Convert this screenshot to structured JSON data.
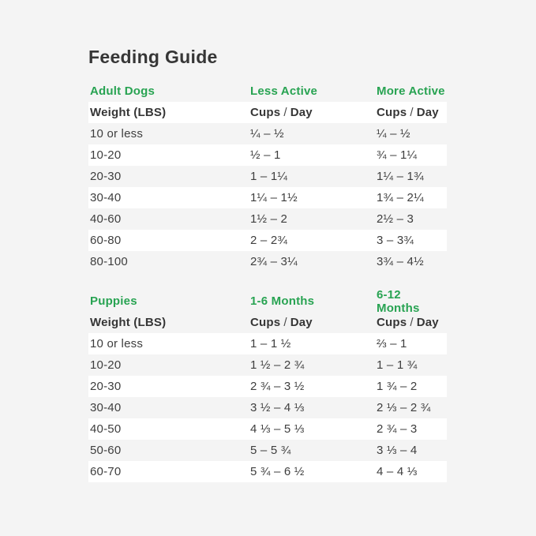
{
  "page": {
    "title": "Feeding Guide",
    "background_color": "#f4f4f4",
    "stripe_color": "#ffffff",
    "accent_green": "#28a352",
    "text_color": "#3e3e3e"
  },
  "chart_data": [
    {
      "type": "table",
      "title": "Feeding Guide",
      "group_labels": [
        "Adult Dogs",
        "Less Active",
        "More Active"
      ],
      "header": {
        "weight": "Weight (LBS)",
        "cups": "Cups",
        "slash": "/",
        "day": "Day"
      },
      "columns": [
        "Weight (LBS)",
        "Less Active Cups / Day",
        "More Active Cups / Day"
      ],
      "rows": [
        [
          "10 or less",
          "¼ – ½",
          "¼ – ½"
        ],
        [
          "10-20",
          "½ – 1",
          "¾ – 1¼"
        ],
        [
          "20-30",
          "1 – 1¼",
          "1¼ – 1¾"
        ],
        [
          "30-40",
          "1¼ – 1½",
          "1¾ – 2¼"
        ],
        [
          "40-60",
          "1½ – 2",
          "2½ – 3"
        ],
        [
          "60-80",
          "2 – 2¾",
          "3 – 3¾"
        ],
        [
          "80-100",
          "2¾ – 3¼",
          "3¾ – 4½"
        ]
      ]
    },
    {
      "type": "table",
      "title": "Feeding Guide",
      "group_labels": [
        "Puppies",
        "1-6 Months",
        "6-12 Months"
      ],
      "header": {
        "weight": "Weight (LBS)",
        "cups": "Cups",
        "slash": "/",
        "day": "Day"
      },
      "columns": [
        "Weight (LBS)",
        "1-6 Months Cups / Day",
        "6-12 Months Cups / Day"
      ],
      "rows": [
        [
          "10 or less",
          "1 – 1 ½",
          "⅔ – 1"
        ],
        [
          "10-20",
          "1 ½ – 2 ¾",
          "1 – 1 ¾"
        ],
        [
          "20-30",
          "2 ¾ – 3 ½",
          "1 ¾ – 2"
        ],
        [
          "30-40",
          "3 ½ – 4 ⅓",
          "2 ⅓ – 2 ¾"
        ],
        [
          "40-50",
          "4 ⅓ – 5 ⅓",
          "2 ¾ – 3"
        ],
        [
          "50-60",
          "5 – 5 ¾",
          "3 ⅓ – 4"
        ],
        [
          "60-70",
          "5 ¾ – 6 ½",
          "4 – 4 ⅓"
        ]
      ]
    }
  ]
}
